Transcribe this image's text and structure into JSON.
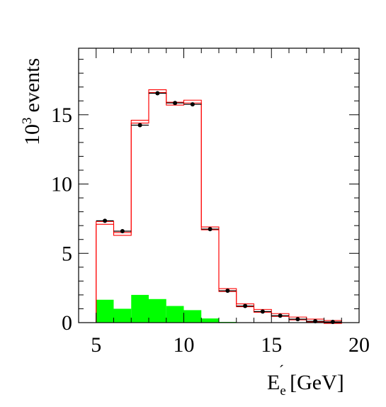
{
  "chart_data": {
    "type": "bar",
    "title": "",
    "ylabel": {
      "base": "10",
      "exponent": "3",
      "text": "events"
    },
    "xlabel": {
      "symbol": "E",
      "subscript": "e",
      "prime": "´",
      "unit": "[GeV]"
    },
    "xlim": [
      4,
      20
    ],
    "ylim": [
      0,
      19.8
    ],
    "x_ticks": [
      "5",
      "10",
      "15",
      "20"
    ],
    "y_ticks": [
      "0",
      "5",
      "10",
      "15"
    ],
    "bin_edges": [
      5,
      6,
      7,
      8,
      9,
      10,
      11,
      12,
      13,
      14,
      15,
      16,
      17,
      18,
      19
    ],
    "series": [
      {
        "kind": "points",
        "values": [
          7.35,
          6.6,
          14.25,
          16.55,
          15.85,
          15.75,
          6.75,
          2.3,
          1.2,
          0.8,
          0.5,
          0.25,
          0.1,
          0.05
        ],
        "color": "#000000"
      },
      {
        "kind": "step",
        "values": [
          7.2,
          6.4,
          14.5,
          16.7,
          15.8,
          15.95,
          6.8,
          2.35,
          1.25,
          0.85,
          0.55,
          0.3,
          0.15,
          0.05
        ],
        "color": "#ff0000"
      },
      {
        "kind": "filled",
        "values": [
          1.65,
          1.0,
          2.0,
          1.7,
          1.2,
          0.9,
          0.3,
          0.05,
          0,
          0,
          0,
          0,
          0,
          0
        ],
        "color": "#00ff00"
      }
    ]
  }
}
